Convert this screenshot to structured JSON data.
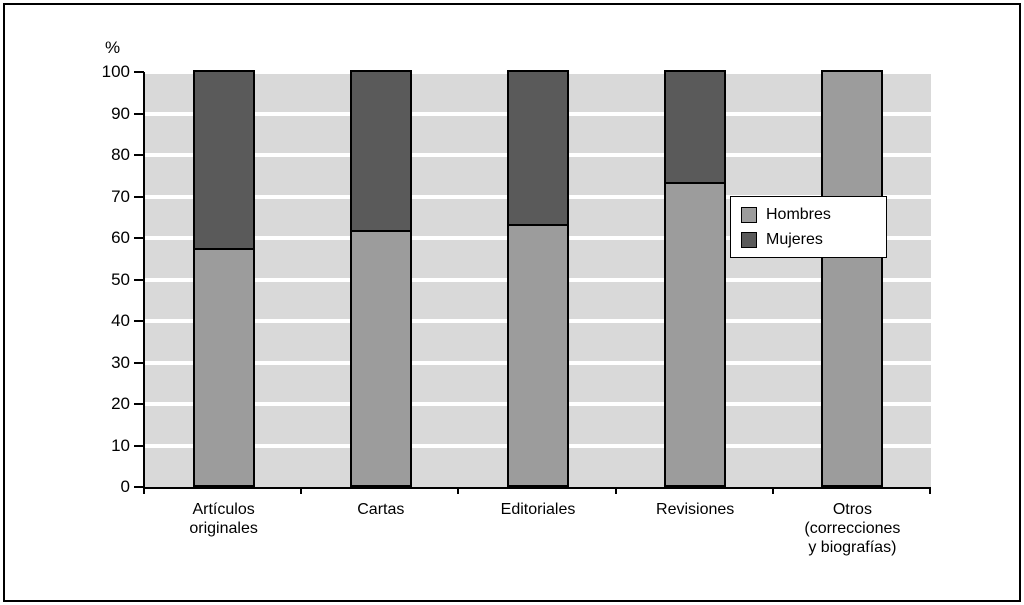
{
  "page": {
    "background": "#ffffff",
    "border_color": "#000000"
  },
  "chart_data": {
    "type": "stacked_bar",
    "title": "",
    "ylabel": "%",
    "xlabel": "",
    "ylim": [
      0,
      100
    ],
    "yticks": [
      0,
      10,
      20,
      30,
      40,
      50,
      60,
      70,
      80,
      90,
      100
    ],
    "grid": true,
    "plot_background": "#d9d9d9",
    "gridline_color": "#ffffff",
    "bar_border_color": "#000000",
    "categories": [
      "Artículos\noriginales",
      "Cartas",
      "Editoriales",
      "Revisiones",
      "Otros\n(correcciones\ny biografías)"
    ],
    "series": [
      {
        "name": "Hombres",
        "color": "#9c9c9c",
        "values": [
          57,
          61.5,
          63,
          73,
          100
        ]
      },
      {
        "name": "Mujeres",
        "color": "#5a5a5a",
        "values": [
          43,
          38.5,
          37,
          27,
          0
        ]
      }
    ],
    "legend": {
      "position": "inside-right",
      "entries": [
        "Hombres",
        "Mujeres"
      ]
    }
  }
}
